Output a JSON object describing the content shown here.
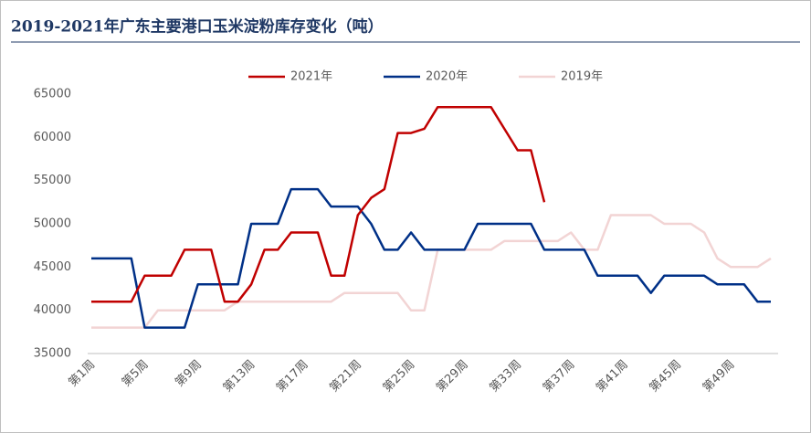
{
  "chart_data": {
    "type": "line",
    "title": "2019-2021年广东主要港口玉米淀粉库存变化（吨）",
    "categories": [
      "第1周",
      null,
      null,
      null,
      "第5周",
      null,
      null,
      null,
      "第9周",
      null,
      null,
      null,
      "第13周",
      null,
      null,
      null,
      "第17周",
      null,
      null,
      null,
      "第21周",
      null,
      null,
      null,
      "第25周",
      null,
      null,
      null,
      "第29周",
      null,
      null,
      null,
      "第33周",
      null,
      null,
      null,
      "第37周",
      null,
      null,
      null,
      "第41周",
      null,
      null,
      null,
      "第45周",
      null,
      null,
      null,
      "第49周",
      null,
      null,
      null
    ],
    "series": [
      {
        "name": "2021年",
        "color": "#c00000",
        "values": [
          41000,
          41000,
          41000,
          41000,
          44000,
          44000,
          44000,
          47000,
          47000,
          47000,
          41000,
          41000,
          43000,
          47000,
          47000,
          49000,
          49000,
          49000,
          44000,
          44000,
          51000,
          53000,
          54000,
          60500,
          60500,
          61000,
          63500,
          63500,
          63500,
          63500,
          63500,
          61000,
          58500,
          58500,
          52500,
          null,
          null,
          null,
          null,
          null,
          null,
          null,
          null,
          null,
          null,
          null,
          null,
          null,
          null,
          null,
          null,
          null
        ]
      },
      {
        "name": "2020年",
        "color": "#003087",
        "values": [
          46000,
          46000,
          46000,
          46000,
          38000,
          38000,
          38000,
          38000,
          43000,
          43000,
          43000,
          43000,
          50000,
          50000,
          50000,
          54000,
          54000,
          54000,
          52000,
          52000,
          52000,
          50000,
          47000,
          47000,
          49000,
          47000,
          47000,
          47000,
          47000,
          50000,
          50000,
          50000,
          50000,
          50000,
          47000,
          47000,
          47000,
          47000,
          44000,
          44000,
          44000,
          44000,
          42000,
          44000,
          44000,
          44000,
          44000,
          43000,
          43000,
          43000,
          41000,
          41000
        ]
      },
      {
        "name": "2019年",
        "color": "#f2d4d4",
        "values": [
          38000,
          38000,
          38000,
          38000,
          38000,
          40000,
          40000,
          40000,
          40000,
          40000,
          40000,
          41000,
          41000,
          41000,
          41000,
          41000,
          41000,
          41000,
          41000,
          42000,
          42000,
          42000,
          42000,
          42000,
          40000,
          40000,
          47000,
          47000,
          47000,
          47000,
          47000,
          48000,
          48000,
          48000,
          48000,
          48000,
          49000,
          47000,
          47000,
          51000,
          51000,
          51000,
          51000,
          50000,
          50000,
          50000,
          49000,
          46000,
          45000,
          45000,
          45000,
          46000
        ]
      }
    ],
    "ylim": [
      35000,
      65000
    ],
    "yticks": [
      35000,
      40000,
      45000,
      50000,
      55000,
      60000,
      65000
    ],
    "grid": false,
    "legend": "top"
  }
}
